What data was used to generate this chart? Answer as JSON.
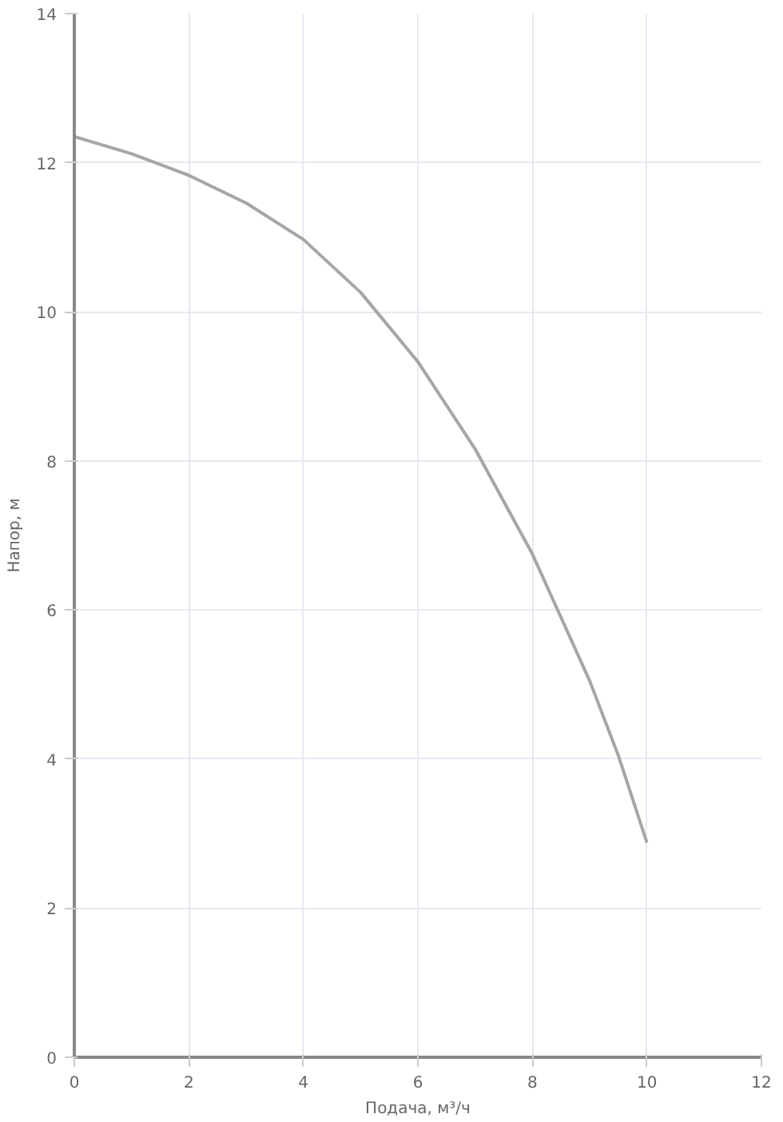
{
  "chart_data": {
    "type": "line",
    "xlabel": "Подача, м³/ч",
    "ylabel": "Напор, м",
    "x": [
      0,
      1,
      2,
      3,
      4,
      5,
      6,
      7,
      8,
      9,
      9.5,
      10
    ],
    "series": [
      {
        "color": "#a6a6a6",
        "values": [
          12.35,
          12.12,
          11.83,
          11.46,
          10.97,
          10.26,
          9.33,
          8.16,
          6.75,
          5.05,
          4.05,
          2.88
        ]
      }
    ],
    "xlim": [
      0,
      12
    ],
    "xticks": [
      0,
      2,
      4,
      6,
      8,
      10,
      12
    ],
    "ylim": [
      0,
      14
    ],
    "yticks": [
      0,
      2,
      4,
      6,
      8,
      10,
      12,
      14
    ],
    "grid": true,
    "marker": "none",
    "line_style": "solid"
  }
}
